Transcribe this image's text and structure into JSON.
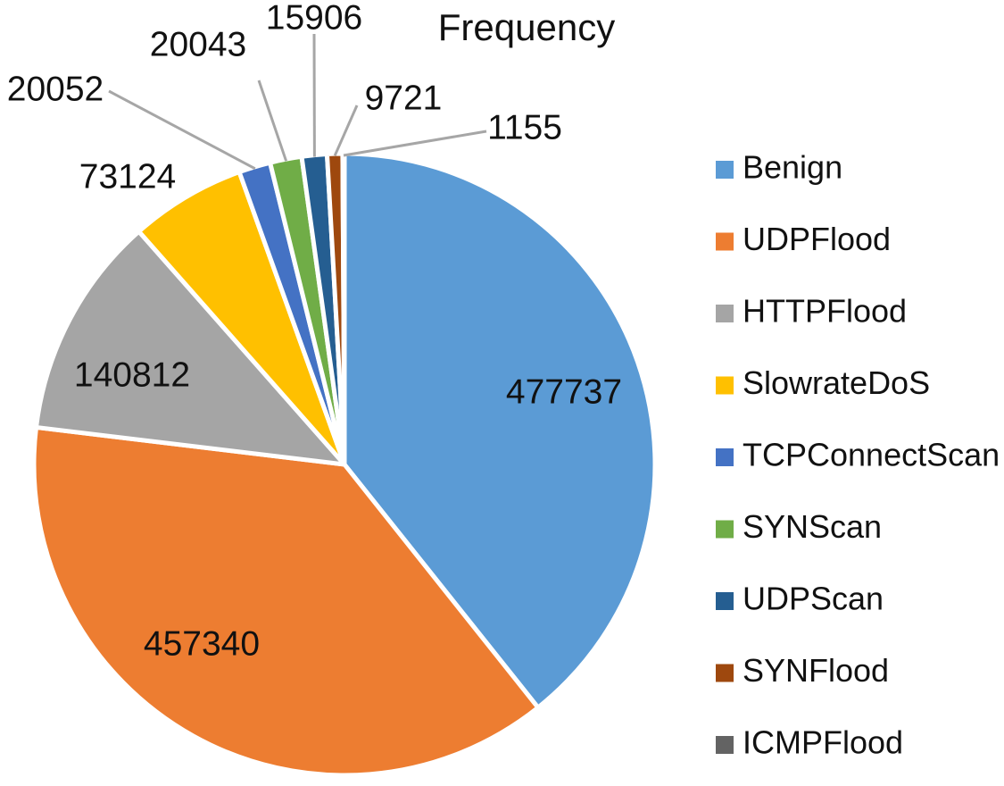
{
  "chart_data": {
    "type": "pie",
    "title": "Frequency",
    "categories": [
      "Benign",
      "UDPFlood",
      "HTTPFlood",
      "SlowrateDoS",
      "TCPConnectScan",
      "SYNScan",
      "UDPScan",
      "SYNFlood",
      "ICMPFlood"
    ],
    "values": [
      477737,
      457340,
      140812,
      73124,
      20052,
      20043,
      15906,
      9721,
      1155
    ],
    "data_labels": [
      "477737",
      "457340",
      "140812",
      "73124",
      "20052",
      "20043",
      "15906",
      "9721",
      "1155"
    ],
    "colors": [
      "#5b9bd5",
      "#ed7d31",
      "#a5a5a5",
      "#ffc000",
      "#4472c4",
      "#70ad47",
      "#255e91",
      "#9e480e",
      "#636363"
    ],
    "legend_position": "right",
    "start_angle": "12 o'clock, clockwise"
  }
}
